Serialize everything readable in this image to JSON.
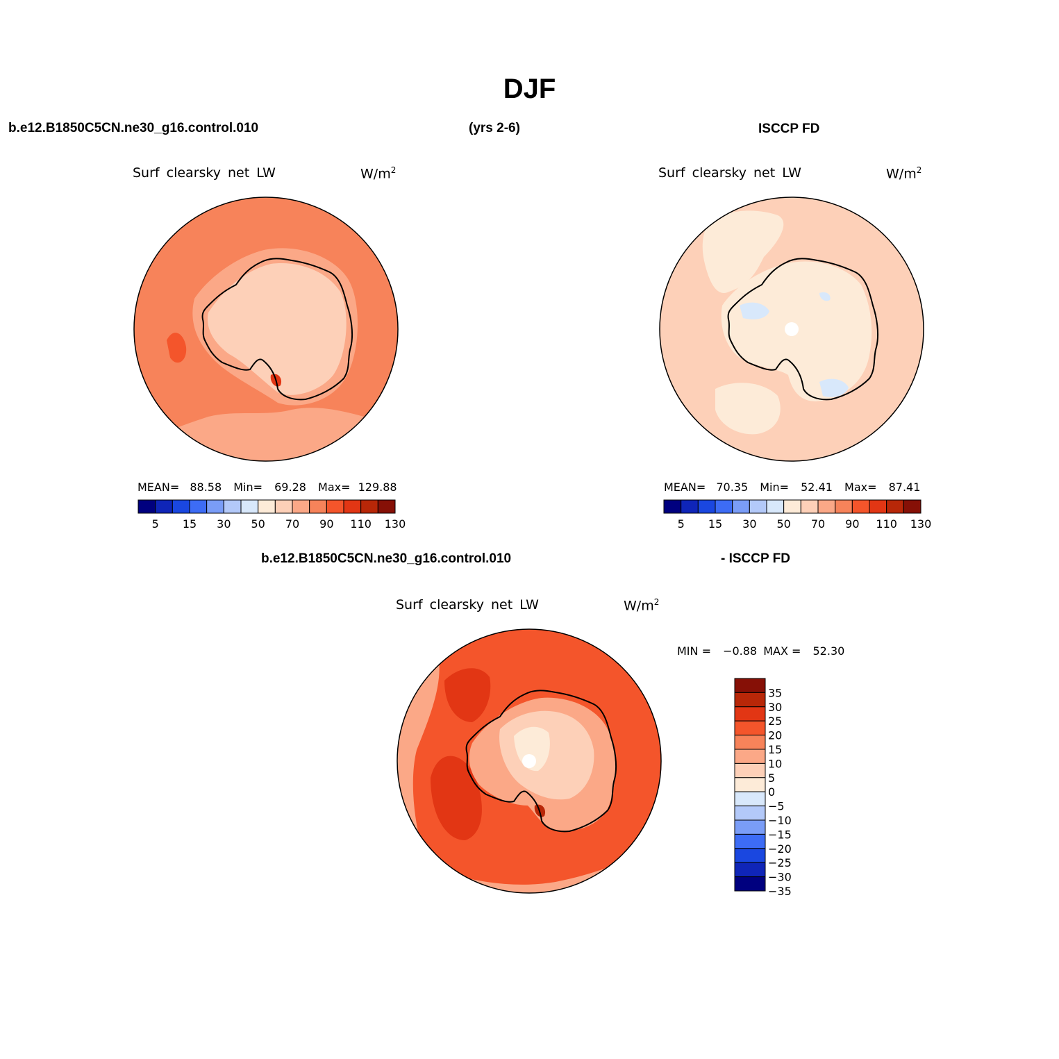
{
  "page": {
    "title": "DJF",
    "top_left_label": "b.e12.B1850C5CN.ne30_g16.control.010",
    "years_label": "(yrs 2-6)",
    "top_right_label": "ISCCP FD",
    "bottom_left_label": "b.e12.B1850C5CN.ne30_g16.control.010",
    "bottom_right_label": "- ISCCP FD"
  },
  "panels": {
    "model": {
      "variable": "Surf clearsky net LW",
      "units": "W/m",
      "units_sup": "2",
      "stats": {
        "mean_label": "MEAN=",
        "mean": "88.58",
        "min_label": "Min=",
        "min": "69.28",
        "max_label": "Max=",
        "max": "129.88"
      }
    },
    "obs": {
      "variable": "Surf clearsky net LW",
      "units": "W/m",
      "units_sup": "2",
      "stats": {
        "mean_label": "MEAN=",
        "mean": "70.35",
        "min_label": "Min=",
        "min": "52.41",
        "max_label": "Max=",
        "max": "87.41"
      }
    },
    "diff": {
      "variable": "Surf clearsky net LW",
      "units": "W/m",
      "units_sup": "2",
      "stats": {
        "min_label": "MIN =",
        "min": "−0.88",
        "max_label": "MAX =",
        "max": "52.30"
      }
    }
  },
  "colorbar_main": {
    "colors": [
      "#00007f",
      "#0f25b8",
      "#1a47e0",
      "#3d6cf5",
      "#7a9df7",
      "#b3c9f9",
      "#d8e8fb",
      "#fdebd8",
      "#fdd0b8",
      "#fba887",
      "#f7835a",
      "#f4552b",
      "#e23614",
      "#b82708",
      "#861006"
    ],
    "tick_labels": [
      "5",
      "15",
      "30",
      "50",
      "70",
      "90",
      "110",
      "130"
    ]
  },
  "colorbar_diff": {
    "colors": [
      "#861006",
      "#b82708",
      "#e23614",
      "#f4552b",
      "#f7835a",
      "#fba887",
      "#fdd0b8",
      "#fdebd8",
      "#d8e8fb",
      "#b3c9f9",
      "#7a9df7",
      "#3d6cf5",
      "#1a47e0",
      "#0f25b8",
      "#00007f"
    ],
    "tick_labels": [
      "35",
      "30",
      "25",
      "20",
      "15",
      "10",
      "5",
      "0",
      "−5",
      "−10",
      "−15",
      "−20",
      "−25",
      "−30",
      "−35"
    ]
  }
}
